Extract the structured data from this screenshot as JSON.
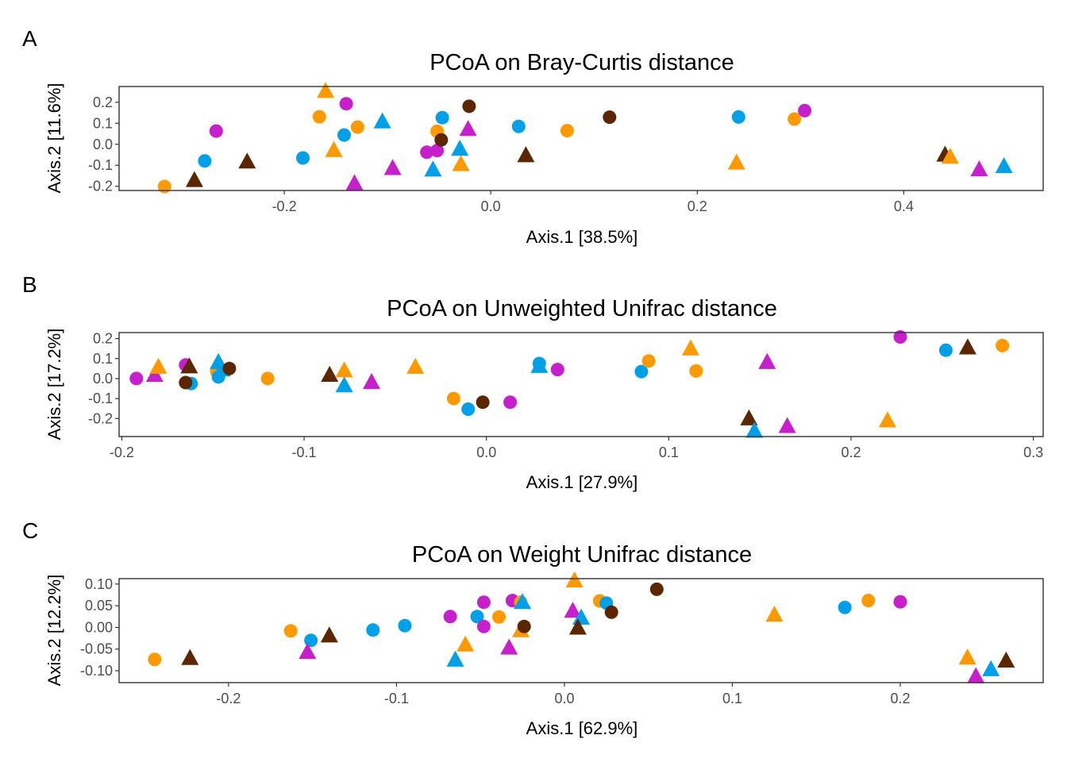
{
  "colors": {
    "orange": "#FF9900",
    "blue": "#00A0E9",
    "magenta": "#C71FCC",
    "brown": "#5C2600"
  },
  "chart_data": [
    {
      "type": "scatter",
      "panel_label": "A",
      "title": "PCoA on Bray-Curtis distance",
      "xlabel": "Axis.1   [38.5%]",
      "ylabel": "Axis.2   [11.6%]",
      "xlim": [
        -0.36,
        0.535
      ],
      "ylim": [
        -0.22,
        0.275
      ],
      "xticks": [
        -0.2,
        0.0,
        0.2,
        0.4
      ],
      "xtick_labels": [
        "-0.2",
        "0.0",
        "0.2",
        "0.4"
      ],
      "yticks": [
        -0.2,
        -0.1,
        0.0,
        0.1,
        0.2
      ],
      "ytick_labels": [
        "-0.2",
        "-0.1",
        "0.0",
        "0.1",
        "0.2"
      ],
      "points": [
        {
          "x": -0.316,
          "y": -0.201,
          "shape": "circle",
          "color": "orange"
        },
        {
          "x": -0.277,
          "y": -0.079,
          "shape": "circle",
          "color": "blue"
        },
        {
          "x": -0.266,
          "y": 0.063,
          "shape": "circle",
          "color": "magenta"
        },
        {
          "x": -0.287,
          "y": -0.171,
          "shape": "triangle",
          "color": "brown"
        },
        {
          "x": -0.236,
          "y": -0.083,
          "shape": "triangle",
          "color": "brown"
        },
        {
          "x": -0.182,
          "y": -0.065,
          "shape": "circle",
          "color": "blue"
        },
        {
          "x": -0.16,
          "y": 0.253,
          "shape": "triangle",
          "color": "orange"
        },
        {
          "x": -0.166,
          "y": 0.131,
          "shape": "circle",
          "color": "orange"
        },
        {
          "x": -0.152,
          "y": -0.028,
          "shape": "triangle",
          "color": "orange"
        },
        {
          "x": -0.142,
          "y": 0.044,
          "shape": "circle",
          "color": "blue"
        },
        {
          "x": -0.14,
          "y": 0.193,
          "shape": "circle",
          "color": "magenta"
        },
        {
          "x": -0.132,
          "y": -0.186,
          "shape": "triangle",
          "color": "magenta"
        },
        {
          "x": -0.129,
          "y": 0.082,
          "shape": "circle",
          "color": "orange"
        },
        {
          "x": -0.105,
          "y": 0.108,
          "shape": "triangle",
          "color": "blue"
        },
        {
          "x": -0.095,
          "y": -0.114,
          "shape": "triangle",
          "color": "magenta"
        },
        {
          "x": -0.062,
          "y": -0.038,
          "shape": "circle",
          "color": "magenta"
        },
        {
          "x": -0.056,
          "y": -0.121,
          "shape": "triangle",
          "color": "blue"
        },
        {
          "x": -0.052,
          "y": -0.03,
          "shape": "circle",
          "color": "magenta"
        },
        {
          "x": -0.052,
          "y": 0.062,
          "shape": "circle",
          "color": "orange"
        },
        {
          "x": -0.048,
          "y": 0.021,
          "shape": "circle",
          "color": "brown"
        },
        {
          "x": -0.047,
          "y": 0.127,
          "shape": "circle",
          "color": "blue"
        },
        {
          "x": -0.03,
          "y": -0.022,
          "shape": "triangle",
          "color": "blue"
        },
        {
          "x": -0.029,
          "y": -0.095,
          "shape": "triangle",
          "color": "orange"
        },
        {
          "x": -0.022,
          "y": 0.072,
          "shape": "triangle",
          "color": "magenta"
        },
        {
          "x": -0.021,
          "y": 0.181,
          "shape": "circle",
          "color": "brown"
        },
        {
          "x": 0.027,
          "y": 0.085,
          "shape": "circle",
          "color": "blue"
        },
        {
          "x": 0.034,
          "y": -0.053,
          "shape": "triangle",
          "color": "brown"
        },
        {
          "x": 0.074,
          "y": 0.065,
          "shape": "circle",
          "color": "orange"
        },
        {
          "x": 0.115,
          "y": 0.129,
          "shape": "circle",
          "color": "brown"
        },
        {
          "x": 0.238,
          "y": -0.088,
          "shape": "triangle",
          "color": "orange"
        },
        {
          "x": 0.24,
          "y": 0.13,
          "shape": "circle",
          "color": "blue"
        },
        {
          "x": 0.294,
          "y": 0.12,
          "shape": "circle",
          "color": "orange"
        },
        {
          "x": 0.304,
          "y": 0.16,
          "shape": "circle",
          "color": "magenta"
        },
        {
          "x": 0.44,
          "y": -0.05,
          "shape": "triangle",
          "color": "brown"
        },
        {
          "x": 0.445,
          "y": -0.06,
          "shape": "triangle",
          "color": "orange"
        },
        {
          "x": 0.473,
          "y": -0.12,
          "shape": "triangle",
          "color": "magenta"
        },
        {
          "x": 0.497,
          "y": -0.105,
          "shape": "triangle",
          "color": "blue"
        }
      ]
    },
    {
      "type": "scatter",
      "panel_label": "B",
      "title": "PCoA on Unweighted Unifrac distance",
      "xlabel": "Axis.1   [27.9%]",
      "ylabel": "Axis.2   [17.2%]",
      "xlim": [
        -0.2015,
        0.3054
      ],
      "ylim": [
        -0.29,
        0.23
      ],
      "xticks": [
        -0.2,
        -0.1,
        0.0,
        0.1,
        0.2,
        0.3
      ],
      "xtick_labels": [
        "-0.2",
        "-0.1",
        "0.0",
        "0.1",
        "0.2",
        "0.3"
      ],
      "yticks": [
        -0.2,
        -0.1,
        0.0,
        0.1,
        0.2
      ],
      "ytick_labels": [
        "-0.2",
        "-0.1",
        "0.0",
        "0.1",
        "0.2"
      ],
      "points": [
        {
          "x": -0.192,
          "y": 0.0,
          "shape": "circle",
          "color": "magenta"
        },
        {
          "x": -0.182,
          "y": 0.018,
          "shape": "triangle",
          "color": "magenta"
        },
        {
          "x": -0.18,
          "y": 0.058,
          "shape": "triangle",
          "color": "orange"
        },
        {
          "x": -0.165,
          "y": 0.068,
          "shape": "circle",
          "color": "magenta"
        },
        {
          "x": -0.163,
          "y": 0.06,
          "shape": "triangle",
          "color": "brown"
        },
        {
          "x": -0.162,
          "y": -0.025,
          "shape": "circle",
          "color": "blue"
        },
        {
          "x": -0.165,
          "y": -0.02,
          "shape": "circle",
          "color": "brown"
        },
        {
          "x": -0.148,
          "y": 0.036,
          "shape": "circle",
          "color": "orange"
        },
        {
          "x": -0.147,
          "y": 0.082,
          "shape": "triangle",
          "color": "blue"
        },
        {
          "x": -0.145,
          "y": 0.045,
          "shape": "triangle",
          "color": "blue"
        },
        {
          "x": -0.147,
          "y": 0.008,
          "shape": "circle",
          "color": "blue"
        },
        {
          "x": -0.141,
          "y": 0.05,
          "shape": "circle",
          "color": "brown"
        },
        {
          "x": -0.12,
          "y": 0.0,
          "shape": "circle",
          "color": "orange"
        },
        {
          "x": -0.086,
          "y": 0.018,
          "shape": "triangle",
          "color": "brown"
        },
        {
          "x": -0.078,
          "y": 0.04,
          "shape": "triangle",
          "color": "orange"
        },
        {
          "x": -0.078,
          "y": -0.035,
          "shape": "triangle",
          "color": "blue"
        },
        {
          "x": -0.063,
          "y": -0.018,
          "shape": "triangle",
          "color": "magenta"
        },
        {
          "x": -0.039,
          "y": 0.058,
          "shape": "triangle",
          "color": "orange"
        },
        {
          "x": -0.018,
          "y": -0.1,
          "shape": "circle",
          "color": "orange"
        },
        {
          "x": -0.01,
          "y": -0.153,
          "shape": "circle",
          "color": "blue"
        },
        {
          "x": -0.002,
          "y": -0.118,
          "shape": "circle",
          "color": "brown"
        },
        {
          "x": 0.013,
          "y": -0.118,
          "shape": "circle",
          "color": "magenta"
        },
        {
          "x": 0.029,
          "y": 0.075,
          "shape": "circle",
          "color": "blue"
        },
        {
          "x": 0.029,
          "y": 0.062,
          "shape": "triangle",
          "color": "blue"
        },
        {
          "x": 0.039,
          "y": 0.045,
          "shape": "circle",
          "color": "magenta"
        },
        {
          "x": 0.085,
          "y": 0.035,
          "shape": "circle",
          "color": "blue"
        },
        {
          "x": 0.089,
          "y": 0.088,
          "shape": "circle",
          "color": "orange"
        },
        {
          "x": 0.112,
          "y": 0.15,
          "shape": "triangle",
          "color": "orange"
        },
        {
          "x": 0.115,
          "y": 0.038,
          "shape": "circle",
          "color": "orange"
        },
        {
          "x": 0.144,
          "y": -0.2,
          "shape": "triangle",
          "color": "brown"
        },
        {
          "x": 0.147,
          "y": -0.262,
          "shape": "triangle",
          "color": "blue"
        },
        {
          "x": 0.154,
          "y": 0.082,
          "shape": "triangle",
          "color": "magenta"
        },
        {
          "x": 0.165,
          "y": -0.238,
          "shape": "triangle",
          "color": "magenta"
        },
        {
          "x": 0.22,
          "y": -0.21,
          "shape": "triangle",
          "color": "orange"
        },
        {
          "x": 0.227,
          "y": 0.208,
          "shape": "circle",
          "color": "magenta"
        },
        {
          "x": 0.252,
          "y": 0.142,
          "shape": "circle",
          "color": "blue"
        },
        {
          "x": 0.264,
          "y": 0.155,
          "shape": "triangle",
          "color": "brown"
        },
        {
          "x": 0.283,
          "y": 0.165,
          "shape": "circle",
          "color": "orange"
        }
      ]
    },
    {
      "type": "scatter",
      "panel_label": "C",
      "title": "PCoA on Weight Unifrac distance",
      "xlabel": "Axis.1   [62.9%]",
      "ylabel": "Axis.2   [12.2%]",
      "xlim": [
        -0.2652,
        0.2851
      ],
      "ylim": [
        -0.1275,
        0.1125
      ],
      "xticks": [
        -0.2,
        -0.1,
        0.0,
        0.1,
        0.2
      ],
      "xtick_labels": [
        "-0.2",
        "-0.1",
        "0.0",
        "0.1",
        "0.2"
      ],
      "yticks": [
        -0.1,
        -0.05,
        0.0,
        0.05,
        0.1
      ],
      "ytick_labels": [
        "-0.10",
        "-0.05",
        "0.00",
        "0.05",
        "0.10"
      ],
      "points": [
        {
          "x": -0.244,
          "y": -0.074,
          "shape": "circle",
          "color": "orange"
        },
        {
          "x": -0.223,
          "y": -0.071,
          "shape": "triangle",
          "color": "brown"
        },
        {
          "x": -0.163,
          "y": -0.008,
          "shape": "circle",
          "color": "orange"
        },
        {
          "x": -0.151,
          "y": -0.03,
          "shape": "circle",
          "color": "blue"
        },
        {
          "x": -0.153,
          "y": -0.057,
          "shape": "triangle",
          "color": "magenta"
        },
        {
          "x": -0.14,
          "y": -0.019,
          "shape": "triangle",
          "color": "brown"
        },
        {
          "x": -0.114,
          "y": -0.006,
          "shape": "circle",
          "color": "blue"
        },
        {
          "x": -0.095,
          "y": 0.004,
          "shape": "circle",
          "color": "blue"
        },
        {
          "x": -0.068,
          "y": 0.025,
          "shape": "circle",
          "color": "magenta"
        },
        {
          "x": -0.065,
          "y": -0.075,
          "shape": "triangle",
          "color": "blue"
        },
        {
          "x": -0.059,
          "y": -0.04,
          "shape": "triangle",
          "color": "orange"
        },
        {
          "x": -0.052,
          "y": 0.025,
          "shape": "circle",
          "color": "blue"
        },
        {
          "x": -0.048,
          "y": 0.002,
          "shape": "circle",
          "color": "magenta"
        },
        {
          "x": -0.048,
          "y": 0.058,
          "shape": "circle",
          "color": "magenta"
        },
        {
          "x": -0.039,
          "y": 0.024,
          "shape": "circle",
          "color": "orange"
        },
        {
          "x": -0.033,
          "y": -0.047,
          "shape": "triangle",
          "color": "magenta"
        },
        {
          "x": -0.031,
          "y": 0.062,
          "shape": "circle",
          "color": "magenta"
        },
        {
          "x": -0.026,
          "y": 0.058,
          "shape": "circle",
          "color": "orange"
        },
        {
          "x": -0.026,
          "y": -0.007,
          "shape": "triangle",
          "color": "orange"
        },
        {
          "x": -0.024,
          "y": 0.002,
          "shape": "circle",
          "color": "brown"
        },
        {
          "x": -0.025,
          "y": 0.058,
          "shape": "triangle",
          "color": "blue"
        },
        {
          "x": 0.006,
          "y": 0.108,
          "shape": "triangle",
          "color": "orange"
        },
        {
          "x": 0.005,
          "y": 0.038,
          "shape": "triangle",
          "color": "magenta"
        },
        {
          "x": 0.01,
          "y": 0.022,
          "shape": "triangle",
          "color": "blue"
        },
        {
          "x": 0.008,
          "y": -0.001,
          "shape": "triangle",
          "color": "brown"
        },
        {
          "x": 0.021,
          "y": 0.061,
          "shape": "circle",
          "color": "orange"
        },
        {
          "x": 0.025,
          "y": 0.056,
          "shape": "circle",
          "color": "blue"
        },
        {
          "x": 0.028,
          "y": 0.035,
          "shape": "circle",
          "color": "brown"
        },
        {
          "x": 0.055,
          "y": 0.088,
          "shape": "circle",
          "color": "brown"
        },
        {
          "x": 0.125,
          "y": 0.029,
          "shape": "triangle",
          "color": "orange"
        },
        {
          "x": 0.167,
          "y": 0.046,
          "shape": "circle",
          "color": "blue"
        },
        {
          "x": 0.181,
          "y": 0.062,
          "shape": "circle",
          "color": "orange"
        },
        {
          "x": 0.2,
          "y": 0.059,
          "shape": "circle",
          "color": "magenta"
        },
        {
          "x": 0.24,
          "y": -0.07,
          "shape": "triangle",
          "color": "orange"
        },
        {
          "x": 0.245,
          "y": -0.113,
          "shape": "triangle",
          "color": "magenta"
        },
        {
          "x": 0.254,
          "y": -0.097,
          "shape": "triangle",
          "color": "blue"
        },
        {
          "x": 0.263,
          "y": -0.077,
          "shape": "triangle",
          "color": "brown"
        }
      ]
    }
  ]
}
